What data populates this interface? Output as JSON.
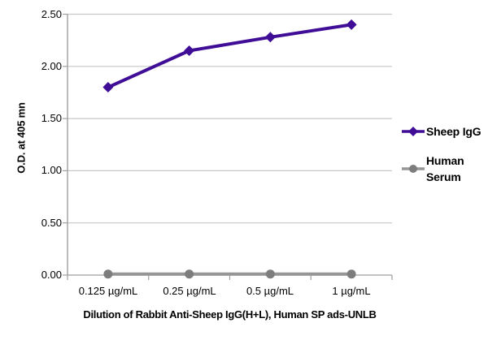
{
  "colors": {
    "background": "#FFFFFF",
    "grid": "#C8C8C8",
    "axis": "#9E9E9E",
    "text": "#000000"
  },
  "chart_data": {
    "type": "line",
    "title": "",
    "xlabel": "Dilution of Rabbit Anti-Sheep IgG(H+L), Human SP ads-UNLB",
    "ylabel": "O.D. at 405 mn",
    "categories": [
      "0.125 µg/mL",
      "0.25 µg/mL",
      "0.5 µg/mL",
      "1 µg/mL"
    ],
    "series": [
      {
        "name": "Sheep IgG",
        "values": [
          1.8,
          2.15,
          2.28,
          2.4
        ],
        "color": "#3F0D96",
        "marker": "diamond"
      },
      {
        "name": "Human Serum",
        "values": [
          0.01,
          0.01,
          0.01,
          0.01
        ],
        "color": "#969696",
        "marker_color": "#7D7D7D",
        "marker": "circle"
      }
    ],
    "ylim": [
      0,
      2.5
    ],
    "ytick_step": 0.5,
    "ytick_labels": [
      "2.50",
      "2.00",
      "1.50",
      "1.00",
      "0.50",
      "0.00"
    ],
    "grid": true,
    "legend_position": "right"
  }
}
